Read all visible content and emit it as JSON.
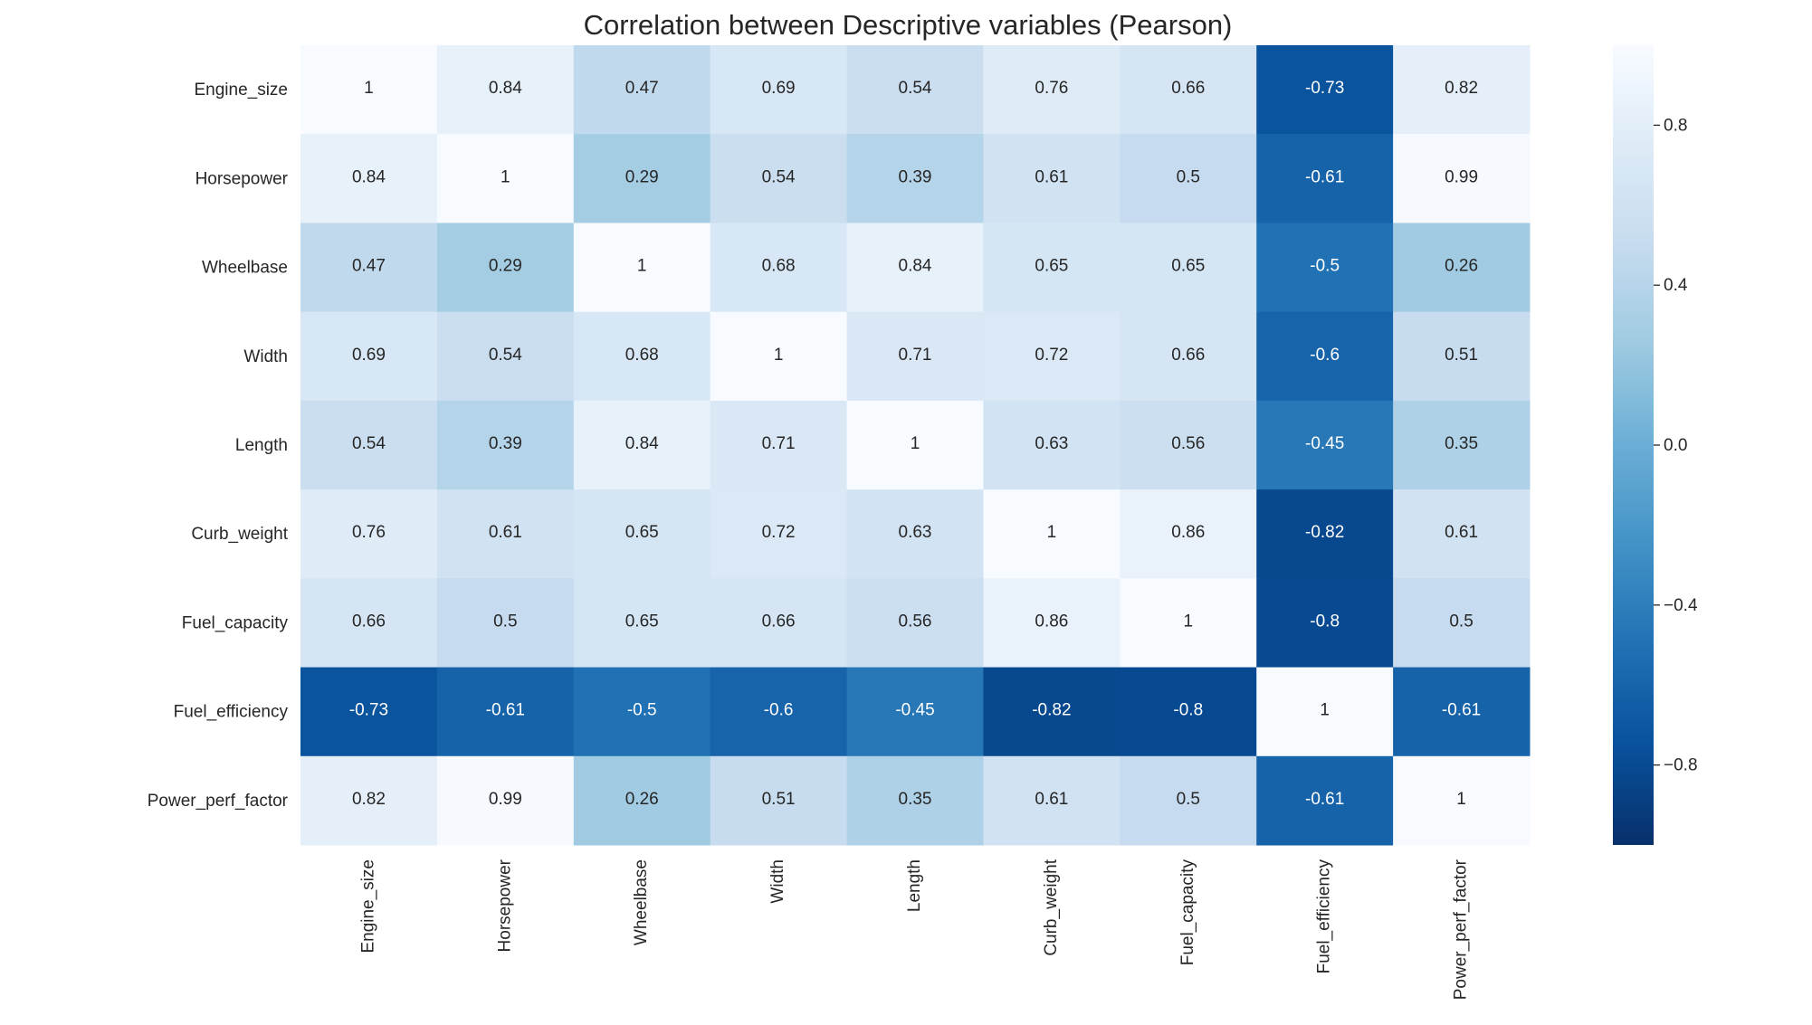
{
  "chart_data": {
    "type": "heatmap",
    "title": "Correlation between Descriptive variables (Pearson)",
    "variables": [
      "Engine_size",
      "Horsepower",
      "Wheelbase",
      "Width",
      "Length",
      "Curb_weight",
      "Fuel_capacity",
      "Fuel_efficiency",
      "Power_perf_factor"
    ],
    "matrix": [
      [
        1,
        0.84,
        0.47,
        0.69,
        0.54,
        0.76,
        0.66,
        -0.73,
        0.82
      ],
      [
        0.84,
        1,
        0.29,
        0.54,
        0.39,
        0.61,
        0.5,
        -0.61,
        0.99
      ],
      [
        0.47,
        0.29,
        1,
        0.68,
        0.84,
        0.65,
        0.65,
        -0.5,
        0.26
      ],
      [
        0.69,
        0.54,
        0.68,
        1,
        0.71,
        0.72,
        0.66,
        -0.6,
        0.51
      ],
      [
        0.54,
        0.39,
        0.84,
        0.71,
        1,
        0.63,
        0.56,
        -0.45,
        0.35
      ],
      [
        0.76,
        0.61,
        0.65,
        0.72,
        0.63,
        1,
        0.86,
        -0.82,
        0.61
      ],
      [
        0.66,
        0.5,
        0.65,
        0.66,
        0.56,
        0.86,
        1,
        -0.8,
        0.5
      ],
      [
        -0.73,
        -0.61,
        -0.5,
        -0.6,
        -0.45,
        -0.82,
        -0.8,
        1,
        -0.61
      ],
      [
        0.82,
        0.99,
        0.26,
        0.51,
        0.35,
        0.61,
        0.5,
        -0.61,
        1
      ]
    ],
    "cell_labels": [
      [
        "1",
        "0.84",
        "0.47",
        "0.69",
        "0.54",
        "0.76",
        "0.66",
        "-0.73",
        "0.82"
      ],
      [
        "0.84",
        "1",
        "0.29",
        "0.54",
        "0.39",
        "0.61",
        "0.5",
        "-0.61",
        "0.99"
      ],
      [
        "0.47",
        "0.29",
        "1",
        "0.68",
        "0.84",
        "0.65",
        "0.65",
        "-0.5",
        "0.26"
      ],
      [
        "0.69",
        "0.54",
        "0.68",
        "1",
        "0.71",
        "0.72",
        "0.66",
        "-0.6",
        "0.51"
      ],
      [
        "0.54",
        "0.39",
        "0.84",
        "0.71",
        "1",
        "0.63",
        "0.56",
        "-0.45",
        "0.35"
      ],
      [
        "0.76",
        "0.61",
        "0.65",
        "0.72",
        "0.63",
        "1",
        "0.86",
        "-0.82",
        "0.61"
      ],
      [
        "0.66",
        "0.5",
        "0.65",
        "0.66",
        "0.56",
        "0.86",
        "1",
        "-0.8",
        "0.5"
      ],
      [
        "-0.73",
        "-0.61",
        "-0.5",
        "-0.6",
        "-0.45",
        "-0.82",
        "-0.8",
        "1",
        "-0.61"
      ],
      [
        "0.82",
        "0.99",
        "0.26",
        "0.51",
        "0.35",
        "0.61",
        "0.5",
        "-0.61",
        "1"
      ]
    ],
    "colorbar": {
      "vmin": -1,
      "vmax": 1,
      "ticks": [
        -0.8,
        -0.4,
        0.0,
        0.4,
        0.8
      ],
      "tick_labels": [
        "−0.8",
        "−0.4",
        "0.0",
        "0.4",
        "0.8"
      ]
    },
    "colormap": "Blues_r",
    "colors": {
      "dark": "#08306b",
      "mid": "#4292c6",
      "light": "#f7fbff",
      "text_dark": "#262626",
      "text_light": "#ffffff"
    }
  }
}
